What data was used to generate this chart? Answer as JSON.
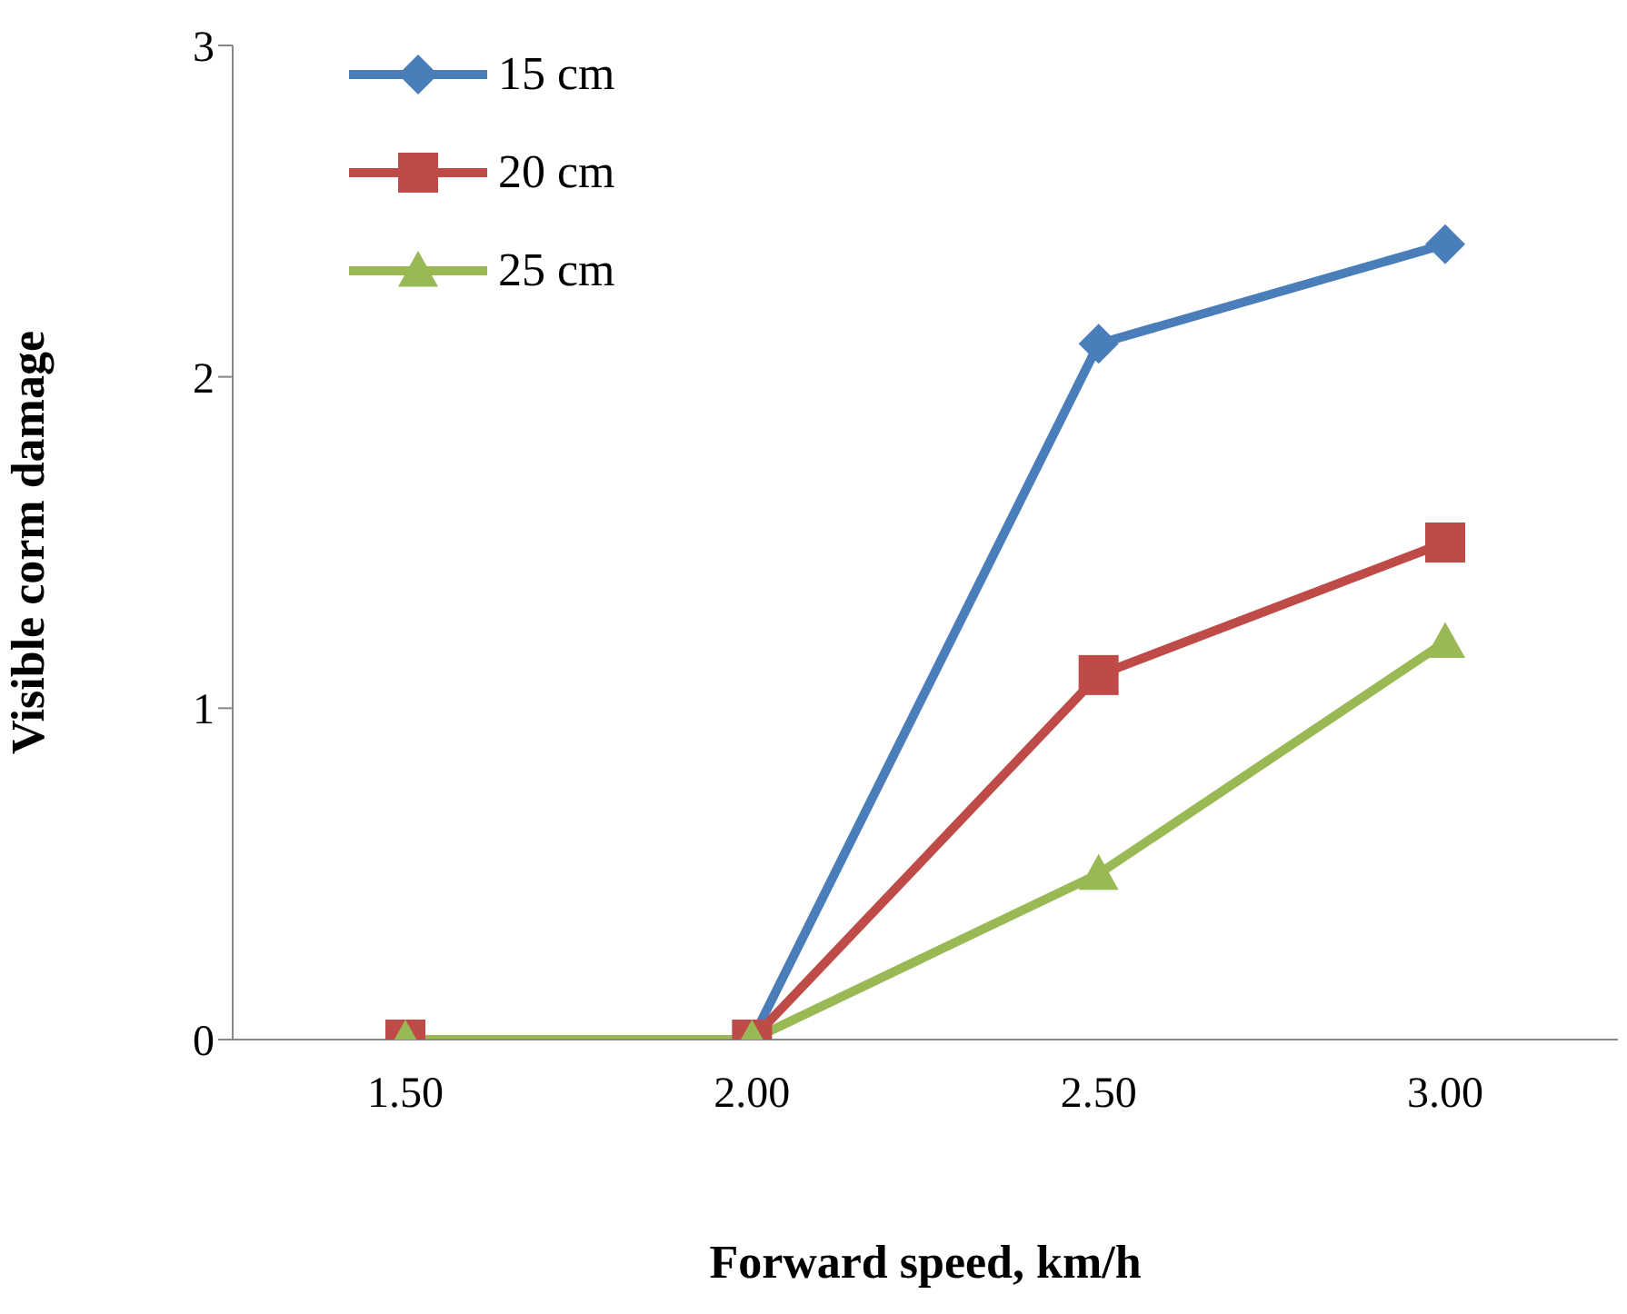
{
  "chart_data": {
    "type": "line",
    "xlabel": "Forward speed, km/h",
    "ylabel": "Visible corm damage",
    "categories": [
      "1.50",
      "2.00",
      "2.50",
      "3.00"
    ],
    "series": [
      {
        "name": "15 cm",
        "color": "#4a7ebb",
        "marker": "diamond",
        "values": [
          0,
          0,
          2.1,
          2.4
        ]
      },
      {
        "name": "20 cm",
        "color": "#be4b48",
        "marker": "square",
        "values": [
          0,
          0,
          1.1,
          1.5
        ]
      },
      {
        "name": "25 cm",
        "color": "#98b954",
        "marker": "triangle",
        "values": [
          0,
          0,
          0.5,
          1.2
        ]
      }
    ],
    "ylim": [
      0,
      3
    ],
    "yticks": [
      0,
      1,
      2,
      3
    ],
    "grid": false,
    "legend": "top left",
    "line_style": "solid"
  }
}
